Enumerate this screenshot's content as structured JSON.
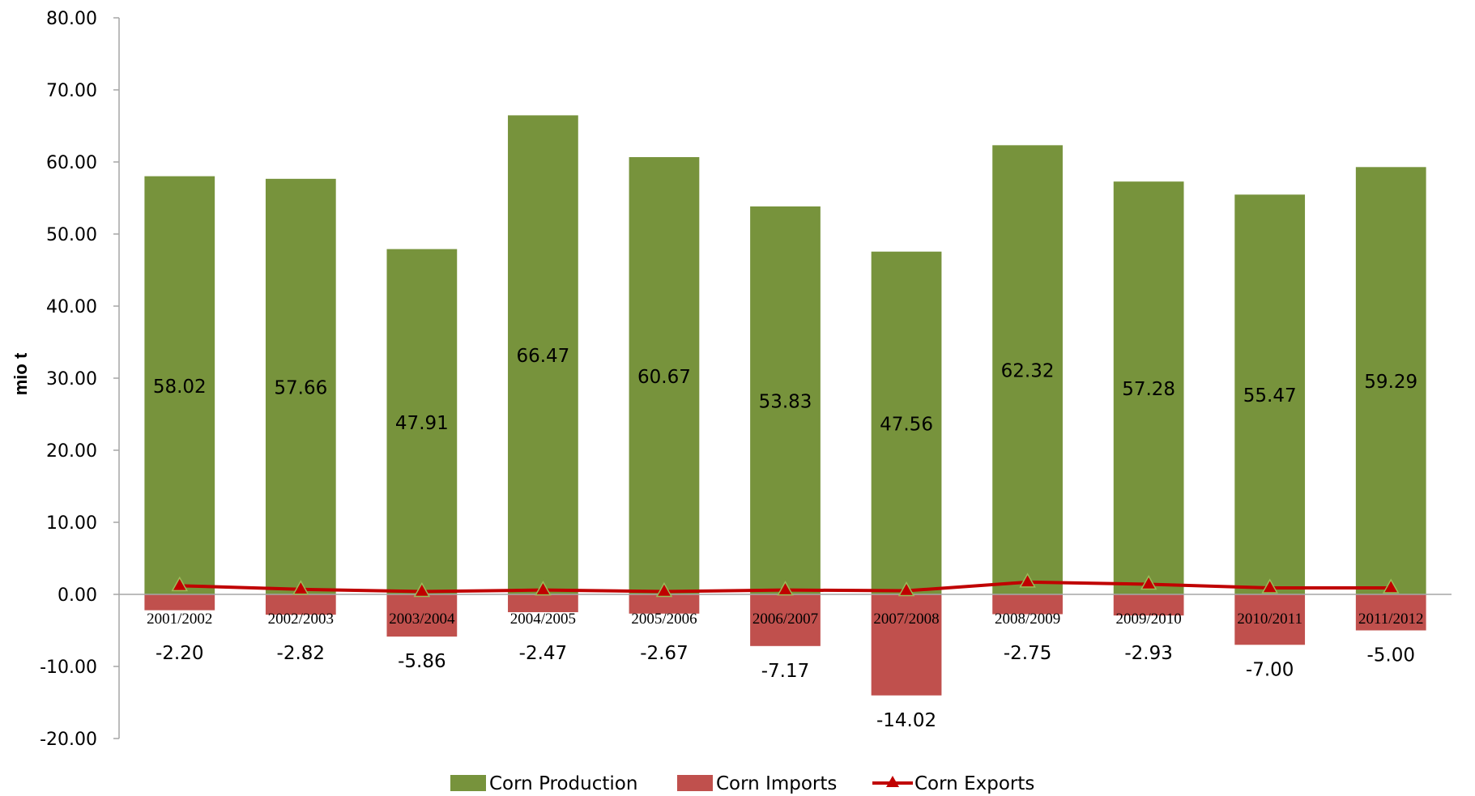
{
  "chart_data": {
    "type": "bar",
    "title": "",
    "xlabel": "",
    "ylabel": "mio t",
    "ylim": [
      -20,
      80
    ],
    "yticks": [
      "80.00",
      "70.00",
      "60.00",
      "50.00",
      "40.00",
      "30.00",
      "20.00",
      "10.00",
      "0.00",
      "-10.00",
      "-20.00"
    ],
    "categories": [
      "2001/2002",
      "2002/2003",
      "2003/2004",
      "2004/2005",
      "2005/2006",
      "2006/2007",
      "2007/2008",
      "2008/2009",
      "2009/2010",
      "2010/2011",
      "2011/2012"
    ],
    "series": [
      {
        "name": "Corn Production",
        "kind": "bar",
        "color": "#77933c",
        "values": [
          58.02,
          57.66,
          47.91,
          66.47,
          60.67,
          53.83,
          47.56,
          62.32,
          57.28,
          55.47,
          59.29
        ],
        "labels": [
          "58.02",
          "57.66",
          "47.91",
          "66.47",
          "60.67",
          "53.83",
          "47.56",
          "62.32",
          "57.28",
          "55.47",
          "59.29"
        ]
      },
      {
        "name": "Corn Imports",
        "kind": "bar",
        "color": "#c0504d",
        "values": [
          -2.2,
          -2.82,
          -5.86,
          -2.47,
          -2.67,
          -7.17,
          -14.02,
          -2.75,
          -2.93,
          -7.0,
          -5.0
        ],
        "labels": [
          "-2.20",
          "-2.82",
          "-5.86",
          "-2.47",
          "-2.67",
          "-7.17",
          "-14.02",
          "-2.75",
          "-2.93",
          "-7.00",
          "-5.00"
        ]
      },
      {
        "name": "Corn Exports",
        "kind": "line",
        "color": "#c00000",
        "marker": "triangle",
        "values": [
          1.2,
          0.7,
          0.4,
          0.6,
          0.4,
          0.6,
          0.5,
          1.7,
          1.4,
          0.9,
          0.9
        ]
      }
    ],
    "legend": "bottom",
    "grid": false
  }
}
